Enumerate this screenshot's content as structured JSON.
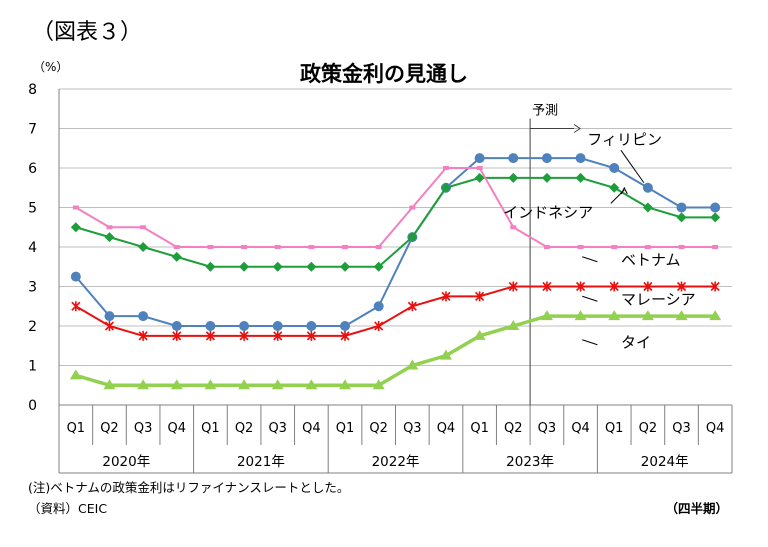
{
  "figure_label": "（図表３）",
  "note": "(注)ベトナムの政策金利はリファイナンスレートとした。",
  "source": "（資料）CEIC",
  "frequency_label": "（四半期）",
  "chart_data": {
    "type": "line",
    "title": "政策金利の見通し",
    "unit_label": "（%）",
    "ylim": [
      0,
      8
    ],
    "yticks": [
      "0",
      "1",
      "2",
      "3",
      "4",
      "5",
      "6",
      "7",
      "8"
    ],
    "grid": "horizontal",
    "categories": [
      "Q1",
      "Q2",
      "Q3",
      "Q4",
      "Q1",
      "Q2",
      "Q3",
      "Q4",
      "Q1",
      "Q2",
      "Q3",
      "Q4",
      "Q1",
      "Q2",
      "Q3",
      "Q4",
      "Q1",
      "Q2",
      "Q3",
      "Q4"
    ],
    "years": [
      "2020年",
      "2021年",
      "2022年",
      "2023年",
      "2024年"
    ],
    "forecast_label": "予測",
    "forecast_start_index": 13.5,
    "series": [
      {
        "name": "フィリピン",
        "color": "#4f81bd",
        "marker": "circle",
        "values": [
          3.25,
          2.25,
          2.25,
          2.0,
          2.0,
          2.0,
          2.0,
          2.0,
          2.0,
          2.5,
          4.25,
          5.5,
          6.25,
          6.25,
          6.25,
          6.25,
          6.0,
          5.5,
          5.0,
          5.0
        ]
      },
      {
        "name": "インドネシア",
        "color": "#1e9e3a",
        "marker": "diamond",
        "values": [
          4.5,
          4.25,
          4.0,
          3.75,
          3.5,
          3.5,
          3.5,
          3.5,
          3.5,
          3.5,
          4.25,
          5.5,
          5.75,
          5.75,
          5.75,
          5.75,
          5.5,
          5.0,
          4.75,
          4.75
        ]
      },
      {
        "name": "ベトナム",
        "color": "#f57fc0",
        "marker": "dash",
        "values": [
          5.0,
          4.5,
          4.5,
          4.0,
          4.0,
          4.0,
          4.0,
          4.0,
          4.0,
          4.0,
          5.0,
          6.0,
          6.0,
          4.5,
          4.0,
          4.0,
          4.0,
          4.0,
          4.0,
          4.0
        ]
      },
      {
        "name": "マレーシア",
        "color": "#e8110f",
        "marker": "star",
        "values": [
          2.5,
          2.0,
          1.75,
          1.75,
          1.75,
          1.75,
          1.75,
          1.75,
          1.75,
          2.0,
          2.5,
          2.75,
          2.75,
          3.0,
          3.0,
          3.0,
          3.0,
          3.0,
          3.0,
          3.0
        ]
      },
      {
        "name": "タイ",
        "color": "#92d050",
        "marker": "triangle",
        "values": [
          0.75,
          0.5,
          0.5,
          0.5,
          0.5,
          0.5,
          0.5,
          0.5,
          0.5,
          0.5,
          1.0,
          1.25,
          1.75,
          2.0,
          2.25,
          2.25,
          2.25,
          2.25,
          2.25,
          2.25
        ]
      }
    ],
    "annotations": [
      {
        "series": "フィリピン",
        "text": "フィリピン",
        "x_index": 17,
        "value": 5.5,
        "label_value": 6.6
      },
      {
        "series": "インドネシア",
        "text": "インドネシア",
        "x_index": 16.3,
        "value": 5.75,
        "label_value": 4.75
      },
      {
        "series": "ベトナム",
        "text": "ベトナム",
        "x_index": 16,
        "value": 4.0,
        "label_value": 3.55
      },
      {
        "series": "マレーシア",
        "text": "マレーシア",
        "x_index": 16,
        "value": 3.0,
        "label_value": 2.55
      },
      {
        "series": "タイ",
        "text": "タイ",
        "x_index": 16,
        "value": 2.25,
        "label_value": 1.45
      }
    ]
  }
}
